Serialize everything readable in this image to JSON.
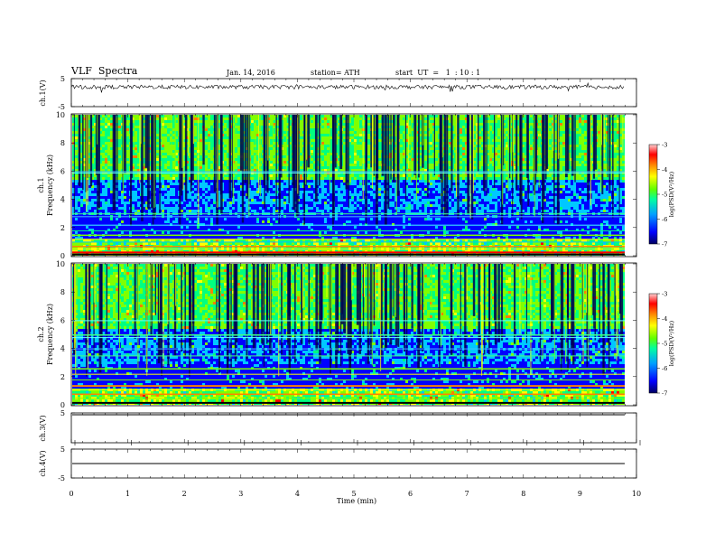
{
  "header": {
    "title": "VLF  Spectra",
    "date": "Jan. 14, 2016",
    "station": "station= ATH",
    "start": "start  UT  =   1  : 10 : 1"
  },
  "colors": {
    "colormap": [
      "#000080",
      "#0000ff",
      "#00c8ff",
      "#00ff80",
      "#80ff00",
      "#ffff00",
      "#ff8000",
      "#ff0000",
      "#ffc0c0"
    ]
  },
  "chart_data": [
    {
      "type": "line",
      "panel": "ch1-waveform",
      "ylabel": "ch.1(V)",
      "ylim": [
        -5,
        5
      ],
      "yticks": [
        "5",
        "-5"
      ],
      "series": [
        {
          "values_note": "noisy signal centred near 2 V",
          "mean": 2
        }
      ]
    },
    {
      "type": "heatmap",
      "panel": "ch1-spectrogram",
      "ylabel": [
        "ch.1",
        "Frequency  (kHz)"
      ],
      "ylim": [
        0,
        10
      ],
      "yticks": [
        "0",
        "2",
        "4",
        "6",
        "8",
        "10"
      ],
      "colorbar": {
        "label": "log(PSD(V²/Hz)",
        "range": [
          -7,
          -3
        ],
        "ticks": [
          "-3",
          "-4",
          "-5",
          "-6",
          "-7"
        ]
      }
    },
    {
      "type": "heatmap",
      "panel": "ch2-spectrogram",
      "ylabel": [
        "ch.2",
        "Frequency  (kHz)"
      ],
      "ylim": [
        0,
        10
      ],
      "yticks": [
        "0",
        "2",
        "4",
        "6",
        "8",
        "10"
      ],
      "colorbar": {
        "label": "log(PSD(V²/Hz)",
        "range": [
          -7,
          -3
        ],
        "ticks": [
          "-3",
          "-4",
          "-5",
          "-6",
          "-7"
        ]
      }
    },
    {
      "type": "line",
      "panel": "ch3-waveform",
      "ylabel": "ch.3(V)",
      "ylim": [
        -5,
        5
      ],
      "yticks": [
        "5"
      ],
      "series": [
        {
          "values_note": "flat",
          "mean": 0
        }
      ]
    },
    {
      "type": "line",
      "panel": "ch4-waveform",
      "ylabel": "ch.4(V)",
      "ylim": [
        -5,
        5
      ],
      "yticks": [
        "5",
        "-5"
      ],
      "series": [
        {
          "values_note": "flat",
          "mean": 0
        }
      ]
    }
  ],
  "xaxis": {
    "label": "Time  (min)",
    "xlim": [
      0,
      10
    ],
    "ticks": [
      "0",
      "1",
      "2",
      "3",
      "4",
      "5",
      "6",
      "7",
      "8",
      "9",
      "10"
    ]
  }
}
